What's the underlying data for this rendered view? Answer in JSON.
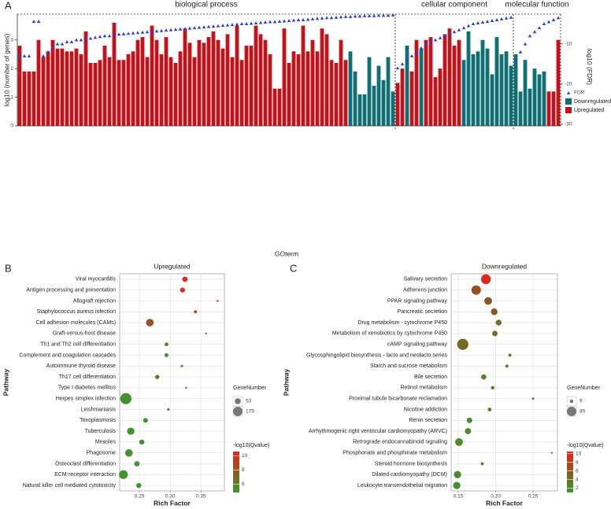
{
  "chart_data": [
    {
      "type": "bar",
      "panel": "A",
      "y_label": "log10 (number of genes)",
      "y2_label": "log10 (FDR)",
      "x_label": "GOterm",
      "groups": [
        {
          "name": "biological process",
          "size": 80
        },
        {
          "name": "cellular component",
          "size": 25
        },
        {
          "name": "molecular function",
          "size": 10
        }
      ],
      "ylim": [
        0,
        3.9
      ],
      "yticks": [
        0,
        1,
        2,
        3
      ],
      "y2lim": [
        -30.4,
        -2.6
      ],
      "y2ticks": [
        -30,
        -20,
        -10
      ],
      "series": [
        {
          "name": "FDR",
          "color": "#2a3fd0",
          "axis": "y2",
          "values": [
            -13,
            -13,
            -13,
            -4.4,
            -4.4,
            -13,
            -12,
            -11,
            -10,
            -10,
            -9.5,
            -9.5,
            -9,
            -9,
            -8.8,
            -8.6,
            -8.4,
            -8.2,
            -8,
            -8,
            -7.8,
            -7.6,
            -7.5,
            -7.4,
            -7.3,
            -7.2,
            -7.1,
            -7,
            -6.9,
            -6.8,
            -6.7,
            -6.6,
            -6.5,
            -6.4,
            -6.3,
            -6.2,
            -6.1,
            -6,
            -5.9,
            -5.8,
            -5.7,
            -5.6,
            -5.5,
            -5.4,
            -5.3,
            -5.2,
            -5.1,
            -5,
            -5,
            -4.9,
            -4.8,
            -4.7,
            -4.6,
            -4.5,
            -4.5,
            -4.4,
            -4.3,
            -4.2,
            -4.1,
            -4,
            -4,
            -3.9,
            -3.8,
            -3.7,
            -3.6,
            -3.5,
            -3.5,
            -3.4,
            -3.3,
            -3.2,
            -3.2,
            -3.1,
            -3.1,
            -3,
            -3,
            -3,
            -2.9,
            -2.9,
            -2.9,
            -2.8,
            -16,
            -15,
            -14,
            -13,
            -12,
            -11,
            -10,
            -9.5,
            -9,
            -8.5,
            -8,
            -7.5,
            -7,
            -6.5,
            -6,
            -5.5,
            -5,
            -4.8,
            -4.6,
            -4.4,
            -4.2,
            -4,
            -3.8,
            -3.6,
            -3.4,
            -14,
            -12,
            -10,
            -8,
            -7,
            -6,
            -5,
            -4.5,
            -4,
            -3.5
          ]
        },
        {
          "name": "Downregulated",
          "color": "#0f6f73",
          "values": [
            null,
            null,
            null,
            null,
            null,
            null,
            null,
            null,
            null,
            null,
            null,
            null,
            null,
            null,
            null,
            null,
            null,
            null,
            null,
            null,
            null,
            null,
            null,
            null,
            null,
            null,
            null,
            null,
            null,
            null,
            null,
            null,
            null,
            null,
            null,
            null,
            null,
            null,
            null,
            null,
            null,
            null,
            null,
            null,
            null,
            null,
            null,
            null,
            null,
            null,
            null,
            null,
            null,
            null,
            null,
            null,
            null,
            null,
            null,
            null,
            null,
            null,
            null,
            null,
            null,
            null,
            null,
            null,
            null,
            null,
            2.6,
            1.9,
            1.1,
            1.1,
            2.4,
            1.4,
            2.1,
            1.6,
            2.4,
            1.2,
            null,
            null,
            2.8,
            null,
            null,
            2.7,
            null,
            null,
            null,
            null,
            null,
            null,
            null,
            null,
            2.3,
            3.3,
            2.5,
            2.6,
            3.0,
            2.7,
            1.8,
            3.1,
            2.5,
            2.6,
            2.1,
            2.5,
            1.2,
            2.3,
            1.3,
            2.0,
            1.8,
            1.9,
            null,
            null,
            null
          ]
        },
        {
          "name": "Upregulated",
          "color": "#c4121b",
          "values": [
            2.8,
            1.9,
            1.9,
            1.9,
            3.0,
            2.4,
            2.6,
            3.0,
            2.7,
            2.7,
            2.6,
            2.6,
            2.7,
            2.5,
            3.3,
            2.2,
            2.2,
            2.3,
            2.8,
            2.4,
            3.6,
            2.3,
            2.3,
            2.5,
            2.6,
            3.0,
            3.1,
            2.4,
            3.5,
            3.0,
            2.5,
            3.1,
            2.4,
            2.2,
            2.6,
            3.4,
            2.9,
            2.4,
            3.0,
            2.9,
            3.1,
            3.3,
            3.0,
            2.7,
            3.2,
            2.4,
            3.5,
            2.3,
            2.8,
            2.8,
            3.5,
            3.2,
            3.0,
            2.5,
            1.3,
            1.3,
            3.4,
            2.2,
            2.6,
            2.5,
            3.5,
            2.6,
            3.0,
            2.6,
            3.4,
            3.2,
            2.3,
            2.2,
            3.0,
            2.3,
            null,
            null,
            null,
            null,
            null,
            null,
            null,
            null,
            null,
            null,
            1.5,
            2.0,
            null,
            1.9,
            3.0,
            null,
            3.0,
            3.1,
            1.7,
            2.0,
            3.2,
            3.4,
            2.8,
            3.0,
            null,
            null,
            null,
            null,
            null,
            null,
            null,
            null,
            null,
            null,
            null,
            null,
            null,
            null,
            null,
            null,
            null,
            null,
            1.2,
            1.2,
            3.0
          ]
        }
      ]
    },
    {
      "type": "scatter",
      "panel": "B",
      "title": "Upregulated",
      "x_label": "Rich Factor",
      "y_label": "Pathway",
      "categories": [
        "Viral myocarditis",
        "Antigen processing and presentation",
        "Allograft rejection",
        "Staphylococcus aureus infection",
        "Cell adhesion molecules (CAMs)",
        "Graft-versus-host disease",
        "Th1 and Th2 cell differentiation",
        "Complement and coagulation cascades",
        "Autoimmune thyroid disease",
        "Th17 cell differentiation",
        "Type I diabetes mellitus",
        "Herpes simplex infection",
        "Leishmaniasis",
        "Toxoplasmosis",
        "Tuberculosis",
        "Measles",
        "Phagosome",
        "Osteoclast differentiation",
        "ECM-receptor interaction",
        "Natural killer cell mediated cytotoxicity"
      ],
      "values": [
        0.324,
        0.32,
        0.377,
        0.341,
        0.267,
        0.358,
        0.294,
        0.294,
        0.319,
        0.279,
        0.326,
        0.228,
        0.297,
        0.26,
        0.236,
        0.254,
        0.233,
        0.246,
        0.224,
        0.249
      ],
      "gene_number": [
        40,
        35,
        5,
        12,
        80,
        4,
        20,
        20,
        8,
        25,
        5,
        179,
        8,
        30,
        75,
        35,
        80,
        40,
        110,
        35
      ],
      "neg_log10_q": [
        10.5,
        10.3,
        10,
        10.2,
        8.2,
        6.5,
        6,
        5.3,
        5.5,
        6.5,
        5.5,
        5.2,
        5.2,
        5,
        5,
        5,
        5,
        5,
        5,
        5
      ],
      "xlim": [
        0.218,
        0.388
      ],
      "xticks": [
        0.25,
        {
          "value": 0.3,
          "label": "0.30"
        },
        0.35
      ],
      "grid": true,
      "size_legend": {
        "title": "GeneNumber",
        "values": [
          53,
          179
        ]
      },
      "color_legend": {
        "title": "-log10(Qvalue)",
        "lim": [
          4.8,
          10.6
        ],
        "ticks": [
          6,
          8,
          10
        ],
        "colors": [
          "#3a9a2c",
          "#8b5a20",
          "#e8241c"
        ]
      }
    },
    {
      "type": "scatter",
      "panel": "C",
      "title": "Downregulated",
      "x_label": "Rich Factor",
      "y_label": "Pathway",
      "categories": [
        "Salivary secretion",
        "Adherens junction",
        "PPAR signaling pathway",
        "Pancreatic secretion",
        "Drug metabolism - cytochrome P450",
        "Metabolism of xenobiotics by cytochrome P450",
        "cAMP signaling pathway",
        "Glycosphingolipid biosynthesis - lacto and neolacto series",
        "Starch and sucrose metabolism",
        "Bile secretion",
        "Retinol metabolism",
        "Proximal tubule bicarbonate reclamation",
        "Nicotine addiction",
        "Renin secretion",
        "Arrhythmogenic right ventricular cardiomyopathy (ARVC)",
        "Retrograde endocannabinoid signaling",
        "Phosphonate and phosphinate metabolism",
        "Steroid hormone biosynthesis",
        "Dilated cardiomyopathy (DCM)",
        "Leukocyte transendothelial migration"
      ],
      "values": [
        0.187,
        0.174,
        0.19,
        0.198,
        0.204,
        0.199,
        0.156,
        0.219,
        0.215,
        0.184,
        0.196,
        0.25,
        0.192,
        0.165,
        0.163,
        0.151,
        0.275,
        0.182,
        0.149,
        0.148
      ],
      "gene_number": [
        65,
        60,
        40,
        30,
        22,
        20,
        85,
        6,
        6,
        18,
        8,
        3,
        9,
        20,
        25,
        40,
        2,
        6,
        35,
        35
      ],
      "neg_log10_q": [
        10.2,
        6.5,
        6,
        5.8,
        4.5,
        4.5,
        4.5,
        3.5,
        3.5,
        2.5,
        2.5,
        3,
        2.5,
        2,
        2,
        2,
        2.5,
        2,
        2,
        2
      ],
      "xlim": [
        0.1405,
        0.2826
      ],
      "xticks": [
        0.15,
        {
          "value": 0.2,
          "label": "0.20"
        },
        0.25
      ],
      "grid": true,
      "size_legend": {
        "title": "GeneNumber",
        "values": [
          9,
          85
        ]
      },
      "color_legend": {
        "title": "-log10(Qvalue)",
        "lim": [
          1,
          10.5
        ],
        "ticks": [
          2,
          4,
          6,
          8,
          10
        ],
        "colors": [
          "#3a9a2c",
          "#8b5a20",
          "#e8241c"
        ]
      }
    }
  ]
}
